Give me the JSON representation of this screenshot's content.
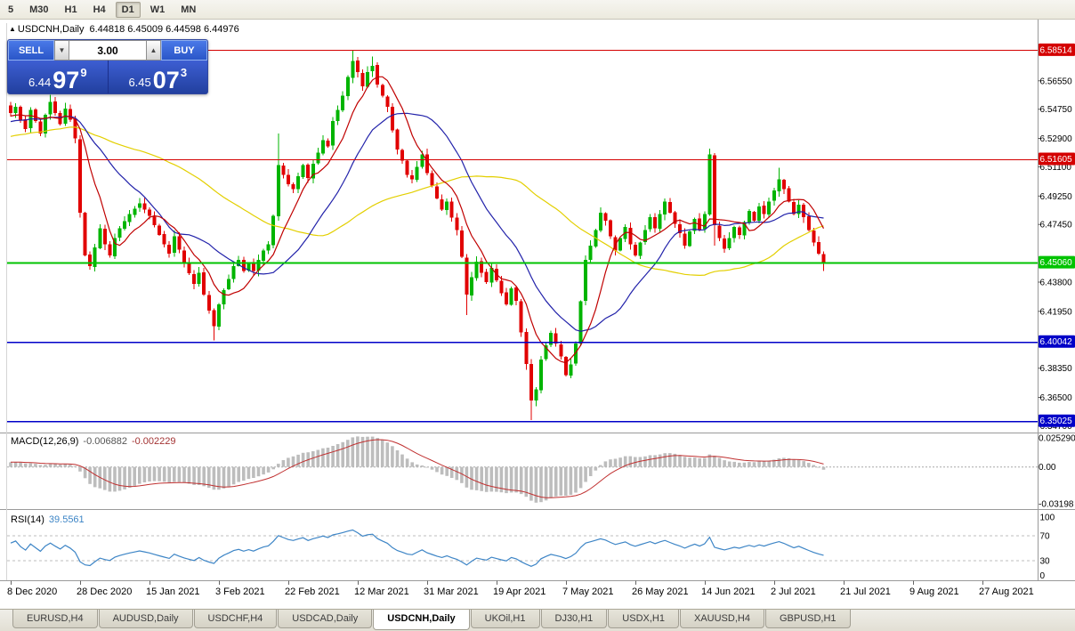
{
  "toolbar": {
    "timeframes": [
      {
        "label": "5",
        "active": false
      },
      {
        "label": "M30",
        "active": false
      },
      {
        "label": "H1",
        "active": false
      },
      {
        "label": "H4",
        "active": false
      },
      {
        "label": "D1",
        "active": true
      },
      {
        "label": "W1",
        "active": false
      },
      {
        "label": "MN",
        "active": false
      }
    ]
  },
  "chart_header": {
    "marker": "▲",
    "symbol": "USDCNH,Daily",
    "ohlc": "6.44818 6.45009 6.44598 6.44976"
  },
  "trade_panel": {
    "sell_label": "SELL",
    "buy_label": "BUY",
    "lot_value": "3.00",
    "spinner_up": "▲",
    "spinner_down": "▼",
    "sell_price": {
      "prefix": "6.44",
      "big": "97",
      "sup": "9"
    },
    "buy_price": {
      "prefix": "6.45",
      "big": "07",
      "sup": "3"
    }
  },
  "price_axis": {
    "tick_labels": [
      "6.56550",
      "6.54750",
      "6.52900",
      "6.51100",
      "6.49250",
      "6.47450",
      "6.43800",
      "6.41950",
      "6.38350",
      "6.36500",
      "6.34700"
    ]
  },
  "levels": [
    {
      "label": "6.58514",
      "price": 6.58514,
      "color": "#d40000",
      "width": 1
    },
    {
      "label": "6.51605",
      "price": 6.51605,
      "color": "#d40000",
      "width": 1
    },
    {
      "label": "6.45060",
      "price": 6.4506,
      "color": "#00c300",
      "width": 2
    },
    {
      "label": "6.40042",
      "price": 6.40042,
      "color": "#0000c8",
      "width": 1.5
    },
    {
      "label": "6.35025",
      "price": 6.35025,
      "color": "#0000c8",
      "width": 1.5
    }
  ],
  "indicators": {
    "macd_label": "MACD(12,26,9)",
    "macd_value_main": "-0.006882",
    "macd_value_signal": "-0.002229",
    "rsi_label": "RSI(14)",
    "rsi_value": "39.5561"
  },
  "colors": {
    "candle_up": "#00b400",
    "candle_down": "#e10000",
    "ma_fast": "#c00000",
    "ma_mid": "#2222aa",
    "ma_slow": "#e3cf00",
    "macd_hist": "#bdbdbd",
    "macd_signal": "#c03030",
    "rsi_line": "#3d85c6",
    "axis_text": "#000000",
    "divider": "#9a9a9a"
  },
  "tabs": [
    {
      "label": "EURUSD,H4",
      "active": false
    },
    {
      "label": "AUDUSD,Daily",
      "active": false
    },
    {
      "label": "USDCHF,H4",
      "active": false
    },
    {
      "label": "USDCAD,Daily",
      "active": false
    },
    {
      "label": "USDCNH,Daily",
      "active": true
    },
    {
      "label": "UKOil,H1",
      "active": false
    },
    {
      "label": "DJ30,H1",
      "active": false
    },
    {
      "label": "USDX,H1",
      "active": false
    },
    {
      "label": "XAUUSD,H4",
      "active": false
    },
    {
      "label": "GBPUSD,H1",
      "active": false
    }
  ],
  "chart_data": {
    "type": "candlestick",
    "symbol": "USDCNH",
    "timeframe": "Daily",
    "last_ohlc": {
      "open": 6.44818,
      "high": 6.45009,
      "low": 6.44598,
      "close": 6.44976
    },
    "bid": 6.44979,
    "ask": 6.45073,
    "y_axis_range": [
      6.345,
      6.602
    ],
    "bars": 165,
    "horizontal_levels": [
      6.58514,
      6.51605,
      6.4506,
      6.40042,
      6.35025
    ],
    "prehistory": {
      "start": 6.508,
      "end": 6.545
    },
    "moving_averages": [
      {
        "period": 8,
        "color_key": "ma_fast"
      },
      {
        "period": 20,
        "color_key": "ma_mid"
      },
      {
        "period": 50,
        "color_key": "ma_slow"
      }
    ],
    "macd": {
      "fast": 12,
      "slow": 26,
      "signal": 9,
      "last_main": -0.006882,
      "last_signal": -0.002229,
      "axis_labels": [
        "0.025290",
        "0.00",
        "-0.03198"
      ]
    },
    "rsi": {
      "period": 14,
      "last": 39.5561,
      "axis_labels": [
        "100",
        "70",
        "30",
        "0"
      ],
      "guide_levels": [
        70,
        30
      ]
    },
    "date_labels": [
      "8 Dec 2020",
      "28 Dec 2020",
      "15 Jan 2021",
      "3 Feb 2021",
      "22 Feb 2021",
      "12 Mar 2021",
      "31 Mar 2021",
      "19 Apr 2021",
      "7 May 2021",
      "26 May 2021",
      "14 Jun 2021",
      "2 Jul 2021",
      "21 Jul 2021",
      "9 Aug 2021",
      "27 Aug 2021"
    ],
    "price_anchors": [
      [
        0,
        6.545
      ],
      [
        1,
        6.549
      ],
      [
        2,
        6.541
      ],
      [
        3,
        6.535
      ],
      [
        4,
        6.547
      ],
      [
        5,
        6.54
      ],
      [
        6,
        6.532
      ],
      [
        7,
        6.544
      ],
      [
        8,
        6.552
      ],
      [
        9,
        6.545
      ],
      [
        10,
        6.538
      ],
      [
        11,
        6.548
      ],
      [
        12,
        6.541
      ],
      [
        13,
        6.529
      ],
      [
        14,
        6.482
      ],
      [
        15,
        6.455
      ],
      [
        16,
        6.448
      ],
      [
        17,
        6.46
      ],
      [
        18,
        6.472
      ],
      [
        19,
        6.462
      ],
      [
        20,
        6.455
      ],
      [
        21,
        6.466
      ],
      [
        22,
        6.472
      ],
      [
        24,
        6.481
      ],
      [
        26,
        6.488
      ],
      [
        28,
        6.48
      ],
      [
        30,
        6.468
      ],
      [
        32,
        6.456
      ],
      [
        33,
        6.467
      ],
      [
        35,
        6.45
      ],
      [
        37,
        6.437
      ],
      [
        38,
        6.444
      ],
      [
        39,
        6.43
      ],
      [
        40,
        6.42
      ],
      [
        41,
        6.41
      ],
      [
        42,
        6.424
      ],
      [
        43,
        6.433
      ],
      [
        44,
        6.44
      ],
      [
        45,
        6.448
      ],
      [
        46,
        6.452
      ],
      [
        47,
        6.445
      ],
      [
        48,
        6.45
      ],
      [
        49,
        6.445
      ],
      [
        50,
        6.452
      ],
      [
        51,
        6.458
      ],
      [
        52,
        6.462
      ],
      [
        53,
        6.48
      ],
      [
        54,
        6.512
      ],
      [
        55,
        6.506
      ],
      [
        56,
        6.5
      ],
      [
        57,
        6.497
      ],
      [
        58,
        6.505
      ],
      [
        59,
        6.512
      ],
      [
        60,
        6.504
      ],
      [
        61,
        6.513
      ],
      [
        62,
        6.52
      ],
      [
        63,
        6.528
      ],
      [
        64,
        6.524
      ],
      [
        65,
        6.54
      ],
      [
        66,
        6.547
      ],
      [
        67,
        6.556
      ],
      [
        68,
        6.568
      ],
      [
        69,
        6.578
      ],
      [
        70,
        6.571
      ],
      [
        71,
        6.562
      ],
      [
        72,
        6.571
      ],
      [
        73,
        6.575
      ],
      [
        74,
        6.563
      ],
      [
        75,
        6.556
      ],
      [
        76,
        6.549
      ],
      [
        77,
        6.534
      ],
      [
        78,
        6.522
      ],
      [
        79,
        6.515
      ],
      [
        80,
        6.506
      ],
      [
        81,
        6.503
      ],
      [
        82,
        6.511
      ],
      [
        83,
        6.519
      ],
      [
        84,
        6.507
      ],
      [
        85,
        6.499
      ],
      [
        86,
        6.491
      ],
      [
        87,
        6.484
      ],
      [
        88,
        6.489
      ],
      [
        89,
        6.479
      ],
      [
        90,
        6.471
      ],
      [
        91,
        6.454
      ],
      [
        92,
        6.43
      ],
      [
        93,
        6.441
      ],
      [
        94,
        6.451
      ],
      [
        95,
        6.444
      ],
      [
        96,
        6.438
      ],
      [
        97,
        6.447
      ],
      [
        98,
        6.439
      ],
      [
        99,
        6.431
      ],
      [
        100,
        6.424
      ],
      [
        101,
        6.434
      ],
      [
        102,
        6.426
      ],
      [
        103,
        6.406
      ],
      [
        104,
        6.386
      ],
      [
        105,
        6.363
      ],
      [
        106,
        6.37
      ],
      [
        107,
        6.389
      ],
      [
        108,
        6.398
      ],
      [
        109,
        6.406
      ],
      [
        110,
        6.399
      ],
      [
        111,
        6.391
      ],
      [
        112,
        6.379
      ],
      [
        113,
        6.386
      ],
      [
        114,
        6.399
      ],
      [
        115,
        6.426
      ],
      [
        116,
        6.452
      ],
      [
        117,
        6.461
      ],
      [
        118,
        6.471
      ],
      [
        119,
        6.482
      ],
      [
        120,
        6.477
      ],
      [
        121,
        6.467
      ],
      [
        122,
        6.458
      ],
      [
        123,
        6.466
      ],
      [
        124,
        6.473
      ],
      [
        125,
        6.462
      ],
      [
        126,
        6.455
      ],
      [
        127,
        6.463
      ],
      [
        128,
        6.471
      ],
      [
        129,
        6.479
      ],
      [
        130,
        6.472
      ],
      [
        131,
        6.481
      ],
      [
        132,
        6.489
      ],
      [
        133,
        6.482
      ],
      [
        134,
        6.475
      ],
      [
        135,
        6.469
      ],
      [
        136,
        6.461
      ],
      [
        137,
        6.47
      ],
      [
        138,
        6.478
      ],
      [
        139,
        6.471
      ],
      [
        140,
        6.481
      ],
      [
        141,
        6.519
      ],
      [
        142,
        6.474
      ],
      [
        143,
        6.466
      ],
      [
        144,
        6.459
      ],
      [
        145,
        6.466
      ],
      [
        146,
        6.473
      ],
      [
        147,
        6.468
      ],
      [
        148,
        6.476
      ],
      [
        149,
        6.483
      ],
      [
        150,
        6.477
      ],
      [
        151,
        6.486
      ],
      [
        152,
        6.481
      ],
      [
        153,
        6.489
      ],
      [
        154,
        6.496
      ],
      [
        155,
        6.503
      ],
      [
        156,
        6.497
      ],
      [
        157,
        6.489
      ],
      [
        158,
        6.481
      ],
      [
        159,
        6.487
      ],
      [
        160,
        6.479
      ],
      [
        161,
        6.471
      ],
      [
        162,
        6.463
      ],
      [
        163,
        6.456
      ],
      [
        164,
        6.45
      ]
    ],
    "wick_overrides": {
      "8": {
        "high": 6.5565
      },
      "14": {
        "high": 6.531
      },
      "41": {
        "low": 6.401
      },
      "54": {
        "high": 6.532
      },
      "69": {
        "high": 6.5851
      },
      "73": {
        "high": 6.581
      },
      "92": {
        "low": 6.417
      },
      "105": {
        "low": 6.3505
      },
      "141": {
        "high": 6.5225
      },
      "142": {
        "low": 6.461
      },
      "155": {
        "high": 6.5105
      },
      "164": {
        "low": 6.445
      }
    }
  }
}
